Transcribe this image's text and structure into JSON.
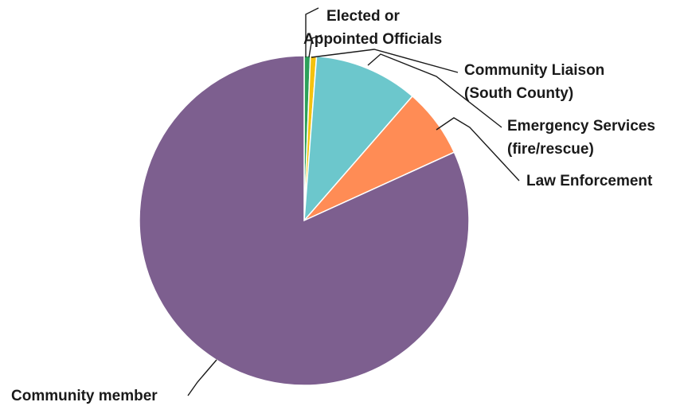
{
  "chart_data": {
    "type": "pie",
    "title": "",
    "categories": [
      "Elected or Appointed Officials",
      "Community Liaison (South County)",
      "Emergency Services (fire/rescue)",
      "Law Enforcement",
      "Community member"
    ],
    "values": [
      0.6,
      0.6,
      10.2,
      6.8,
      81.8
    ],
    "unit": "%",
    "start_angle_deg": 0,
    "direction": "clockwise",
    "colors": [
      "#2ca05a",
      "#f4c20d",
      "#6cc7cc",
      "#ff8c55",
      "#7d5f8f"
    ],
    "labels": [
      {
        "lines": [
          "Elected or",
          "Appointed Officials"
        ]
      },
      {
        "lines": [
          "Community Liaison",
          "(South County)"
        ]
      },
      {
        "lines": [
          "Emergency Services",
          "(fire/rescue)"
        ]
      },
      {
        "lines": [
          "Law Enforcement"
        ]
      },
      {
        "lines": [
          "Community member"
        ]
      }
    ]
  }
}
